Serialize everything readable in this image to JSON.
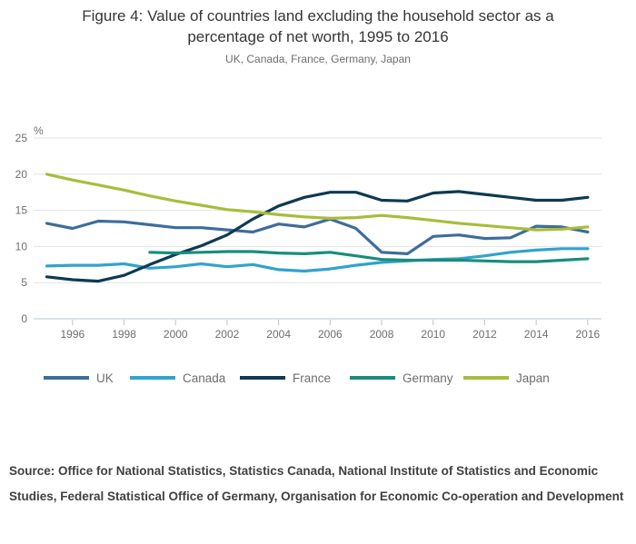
{
  "figure": {
    "title": "Figure 4: Value of countries land excluding the household sector as a percentage of net worth, 1995 to 2016",
    "subtitle": "UK, Canada, France, Germany, Japan",
    "source_text": "Source: Office for National Statistics, Statistics Canada, National Institute of Statistics and Economic Studies, Federal Statistical Office of Germany, Organisation for Economic Co-operation and Development"
  },
  "chart_data": {
    "type": "line",
    "title": "Figure 4: Value of countries land excluding the household sector as a percentage of net worth, 1995 to 2016",
    "subtitle": "UK, Canada, France, Germany, Japan",
    "xlabel": "",
    "ylabel": "%",
    "ylim": [
      0,
      25
    ],
    "y_ticks": [
      0,
      5,
      10,
      15,
      20,
      25
    ],
    "x_ticks": [
      1996,
      1998,
      2000,
      2002,
      2004,
      2006,
      2008,
      2010,
      2012,
      2014,
      2016
    ],
    "grid": true,
    "legend_position": "bottom",
    "x": [
      1995,
      1996,
      1997,
      1998,
      1999,
      2000,
      2001,
      2002,
      2003,
      2004,
      2005,
      2006,
      2007,
      2008,
      2009,
      2010,
      2011,
      2012,
      2013,
      2014,
      2015,
      2016
    ],
    "series": [
      {
        "name": "UK",
        "color": "#3d6d9a",
        "values": [
          13.2,
          12.5,
          13.5,
          13.4,
          13.0,
          12.6,
          12.6,
          12.3,
          12.0,
          13.1,
          12.7,
          13.8,
          12.5,
          9.2,
          9.0,
          11.4,
          11.6,
          11.1,
          11.2,
          12.8,
          12.7,
          12.0
        ]
      },
      {
        "name": "Canada",
        "color": "#30a3cf",
        "values": [
          7.3,
          7.4,
          7.4,
          7.6,
          7.0,
          7.2,
          7.6,
          7.2,
          7.5,
          6.8,
          6.6,
          6.9,
          7.4,
          7.8,
          8.0,
          8.2,
          8.3,
          8.7,
          9.2,
          9.5,
          9.7,
          9.7
        ]
      },
      {
        "name": "France",
        "color": "#0e3a52",
        "values": [
          5.8,
          5.4,
          5.2,
          6.0,
          7.5,
          8.9,
          10.1,
          11.6,
          13.8,
          15.6,
          16.8,
          17.5,
          17.5,
          16.4,
          16.3,
          17.4,
          17.6,
          17.2,
          16.8,
          16.4,
          16.4,
          16.8
        ]
      },
      {
        "name": "Germany",
        "color": "#1a8c7d",
        "values": [
          null,
          null,
          null,
          null,
          9.2,
          9.1,
          9.2,
          9.3,
          9.3,
          9.1,
          9.0,
          9.2,
          8.7,
          8.2,
          8.1,
          8.1,
          8.1,
          8.0,
          7.9,
          7.9,
          8.1,
          8.3
        ]
      },
      {
        "name": "Japan",
        "color": "#a8bd3a",
        "values": [
          20.0,
          19.2,
          18.5,
          17.8,
          17.0,
          16.3,
          15.7,
          15.1,
          14.8,
          14.4,
          14.1,
          13.9,
          14.0,
          14.3,
          14.0,
          13.6,
          13.2,
          12.9,
          12.6,
          12.3,
          12.4,
          12.7
        ]
      }
    ],
    "colors": {
      "gridline": "#e2e2e2",
      "axis_line": "#b7c6d2",
      "tick_label": "#6f6f6f",
      "legend_label": "#6e6e6e"
    }
  }
}
